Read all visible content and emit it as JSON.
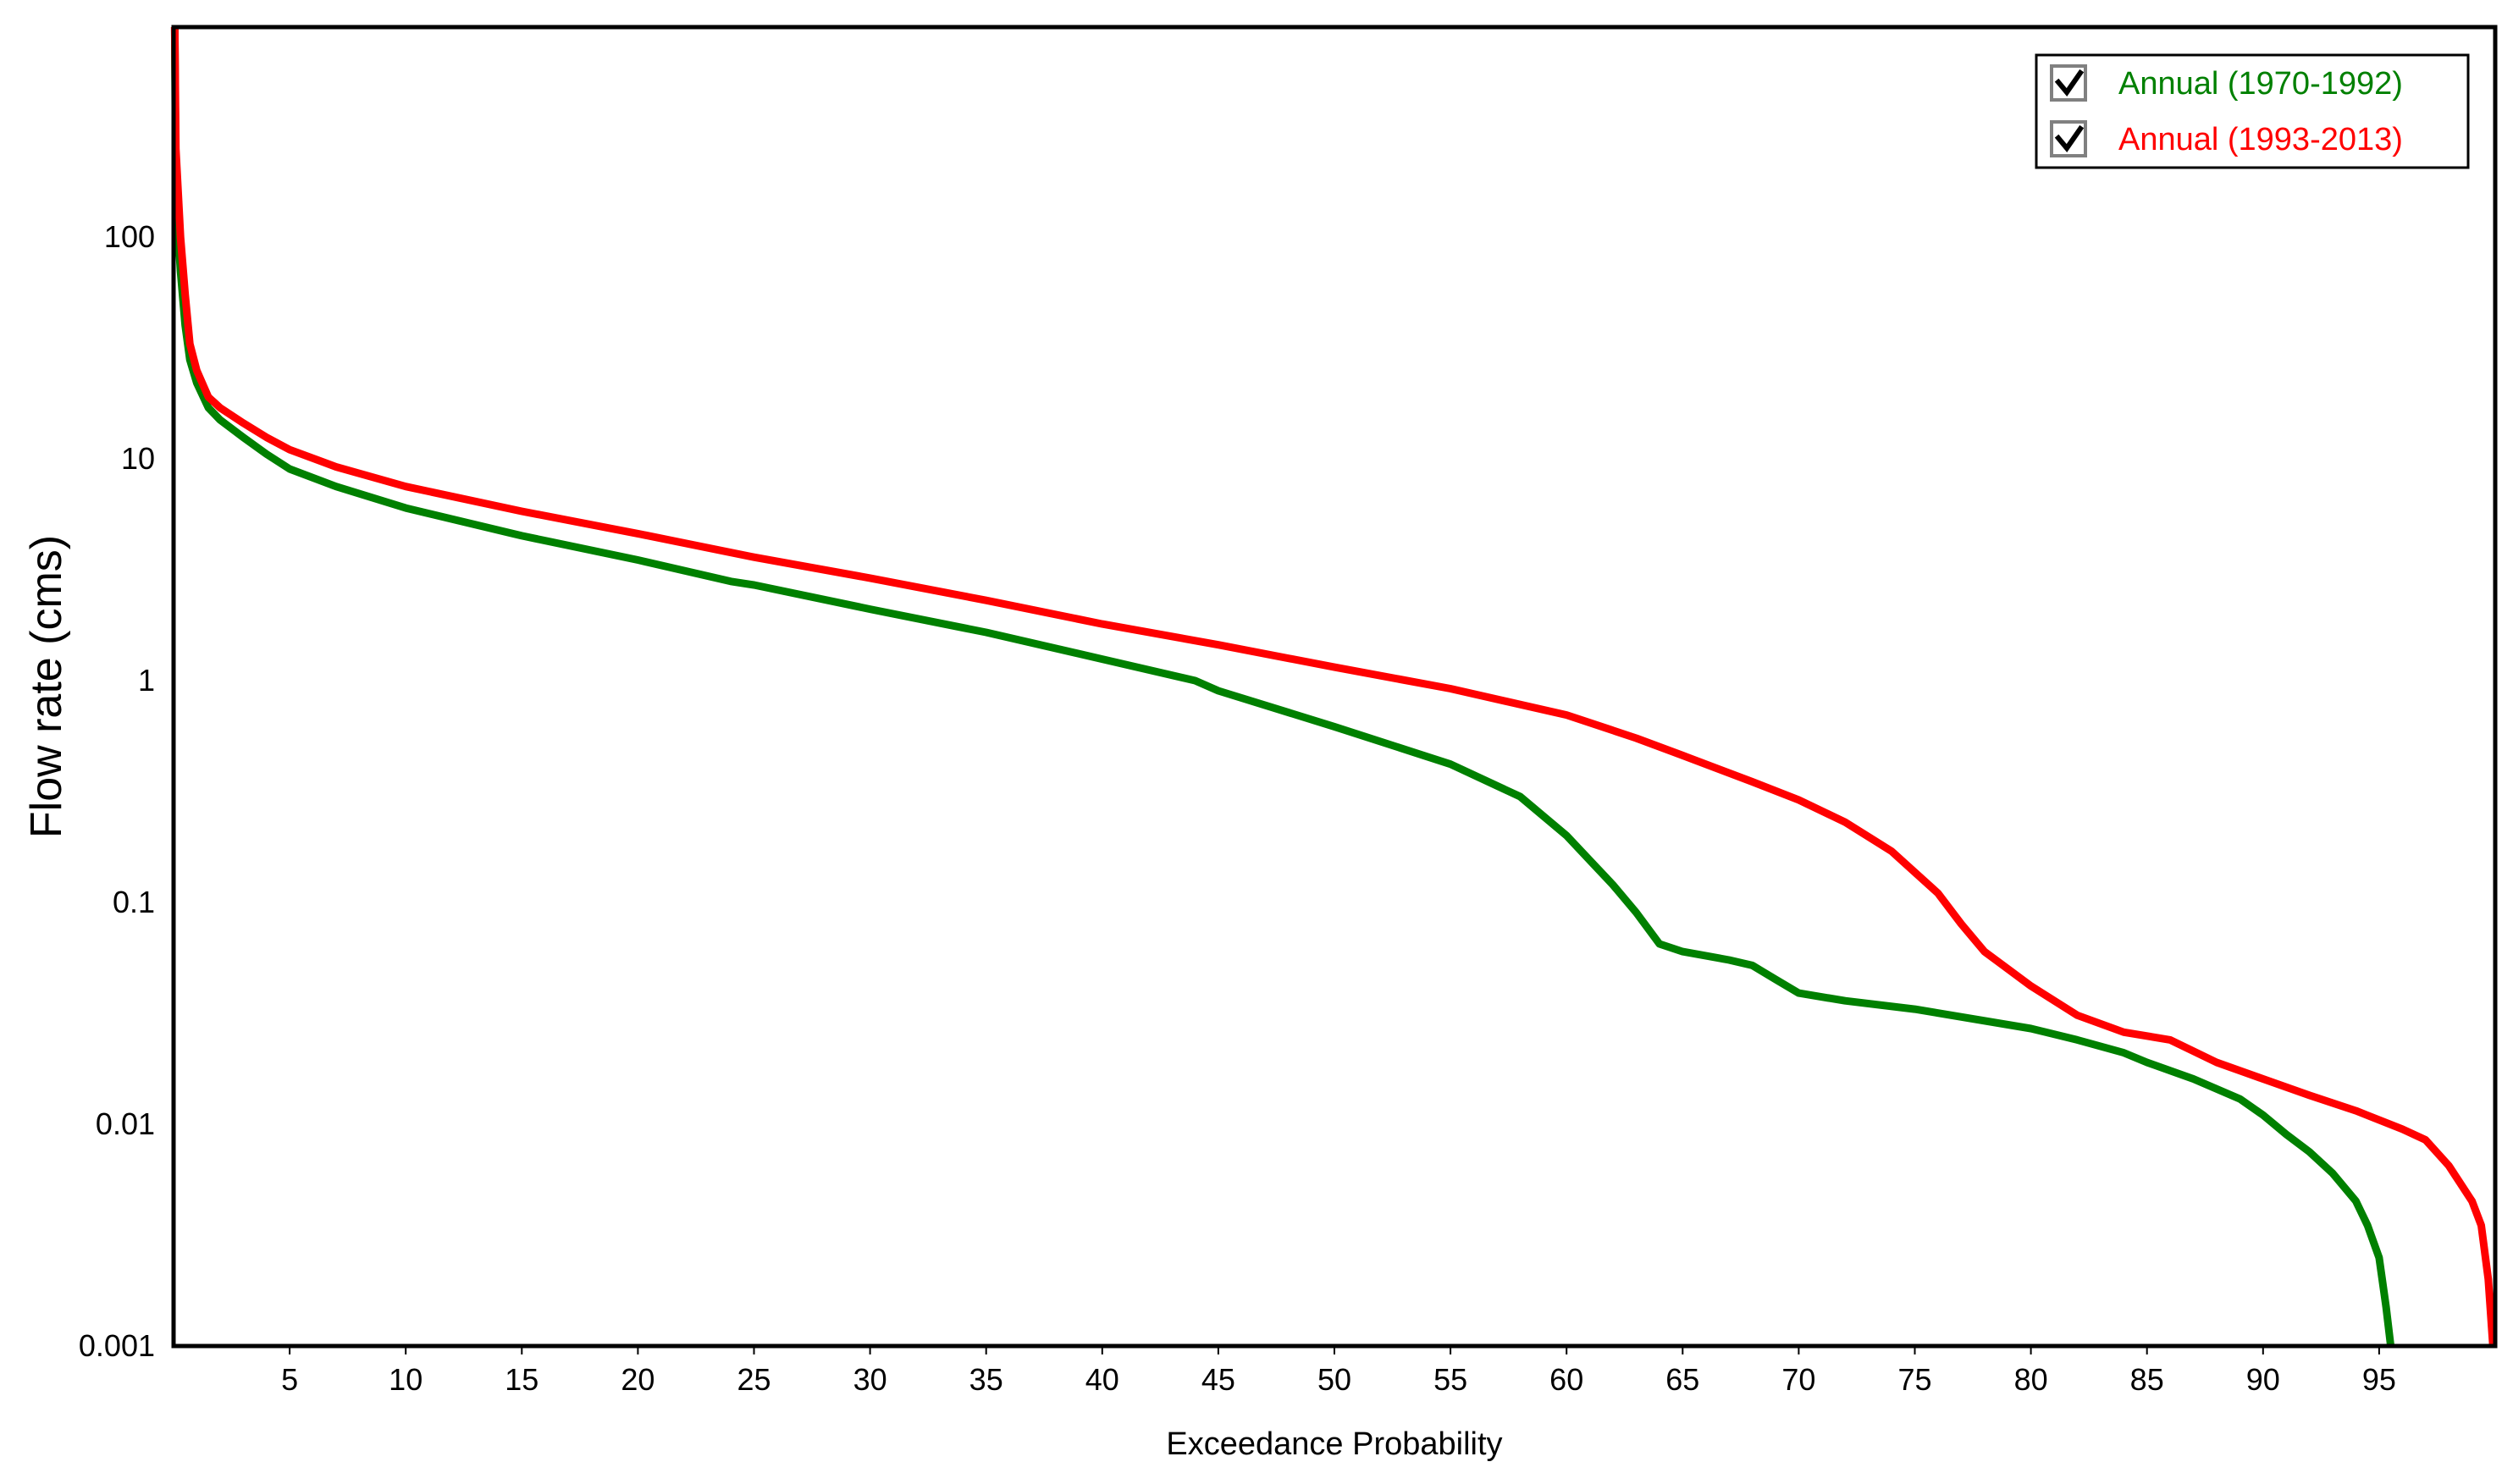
{
  "chart_data": {
    "type": "line",
    "title": "",
    "xlabel": "Exceedance Probability",
    "ylabel": "Flow rate (cms)",
    "xlim": [
      0,
      100
    ],
    "ylim": [
      0.001,
      1000
    ],
    "yscale": "log",
    "grid": false,
    "legend_position": "top-right",
    "x_ticks": [
      "5",
      "10",
      "15",
      "20",
      "25",
      "30",
      "35",
      "40",
      "45",
      "50",
      "55",
      "60",
      "65",
      "70",
      "75",
      "80",
      "85",
      "90",
      "95"
    ],
    "y_ticks": [
      "100",
      "10",
      "1",
      "0.1",
      "0.01",
      "0.001"
    ],
    "series": [
      {
        "name": "Annual (1970-1992)",
        "color": "#008000",
        "checked": true,
        "points": [
          [
            0.05,
            1000
          ],
          [
            0.1,
            150
          ],
          [
            0.3,
            70
          ],
          [
            0.5,
            40
          ],
          [
            0.7,
            28
          ],
          [
            1,
            22
          ],
          [
            1.5,
            17
          ],
          [
            2,
            15
          ],
          [
            3,
            12.5
          ],
          [
            4,
            10.5
          ],
          [
            5,
            9
          ],
          [
            7,
            7.5
          ],
          [
            10,
            6
          ],
          [
            15,
            4.5
          ],
          [
            20,
            3.5
          ],
          [
            24,
            2.8
          ],
          [
            25,
            2.7
          ],
          [
            30,
            2.1
          ],
          [
            35,
            1.65
          ],
          [
            40,
            1.25
          ],
          [
            44,
            1.0
          ],
          [
            45,
            0.9
          ],
          [
            50,
            0.62
          ],
          [
            55,
            0.42
          ],
          [
            58,
            0.3
          ],
          [
            60,
            0.2
          ],
          [
            62,
            0.12
          ],
          [
            63,
            0.09
          ],
          [
            64,
            0.065
          ],
          [
            65,
            0.06
          ],
          [
            67,
            0.055
          ],
          [
            68,
            0.052
          ],
          [
            69,
            0.045
          ],
          [
            70,
            0.039
          ],
          [
            72,
            0.036
          ],
          [
            75,
            0.033
          ],
          [
            80,
            0.027
          ],
          [
            82,
            0.024
          ],
          [
            84,
            0.021
          ],
          [
            85,
            0.019
          ],
          [
            87,
            0.016
          ],
          [
            89,
            0.013
          ],
          [
            90,
            0.011
          ],
          [
            91,
            0.009
          ],
          [
            92,
            0.0075
          ],
          [
            93,
            0.006
          ],
          [
            94,
            0.0045
          ],
          [
            94.5,
            0.0035
          ],
          [
            95,
            0.0025
          ],
          [
            95.3,
            0.0015
          ],
          [
            95.5,
            0.001
          ]
        ]
      },
      {
        "name": "Annual (1993-2013)",
        "color": "#ff0000",
        "checked": true,
        "points": [
          [
            0.05,
            1000
          ],
          [
            0.1,
            250
          ],
          [
            0.3,
            100
          ],
          [
            0.5,
            55
          ],
          [
            0.7,
            33
          ],
          [
            1,
            25
          ],
          [
            1.5,
            19
          ],
          [
            2,
            17
          ],
          [
            3,
            14.5
          ],
          [
            4,
            12.5
          ],
          [
            5,
            11
          ],
          [
            7,
            9.2
          ],
          [
            10,
            7.5
          ],
          [
            15,
            5.8
          ],
          [
            20,
            4.6
          ],
          [
            25,
            3.6
          ],
          [
            30,
            2.9
          ],
          [
            35,
            2.3
          ],
          [
            40,
            1.8
          ],
          [
            45,
            1.45
          ],
          [
            50,
            1.15
          ],
          [
            55,
            0.92
          ],
          [
            60,
            0.7
          ],
          [
            63,
            0.55
          ],
          [
            65,
            0.46
          ],
          [
            68,
            0.35
          ],
          [
            70,
            0.29
          ],
          [
            72,
            0.23
          ],
          [
            74,
            0.17
          ],
          [
            76,
            0.11
          ],
          [
            77,
            0.08
          ],
          [
            78,
            0.06
          ],
          [
            80,
            0.042
          ],
          [
            82,
            0.031
          ],
          [
            84,
            0.026
          ],
          [
            86,
            0.024
          ],
          [
            88,
            0.019
          ],
          [
            90,
            0.016
          ],
          [
            92,
            0.0135
          ],
          [
            94,
            0.0115
          ],
          [
            96,
            0.0095
          ],
          [
            97,
            0.0085
          ],
          [
            98,
            0.0065
          ],
          [
            99,
            0.0045
          ],
          [
            99.4,
            0.0035
          ],
          [
            99.7,
            0.002
          ],
          [
            99.9,
            0.001
          ]
        ]
      }
    ]
  }
}
